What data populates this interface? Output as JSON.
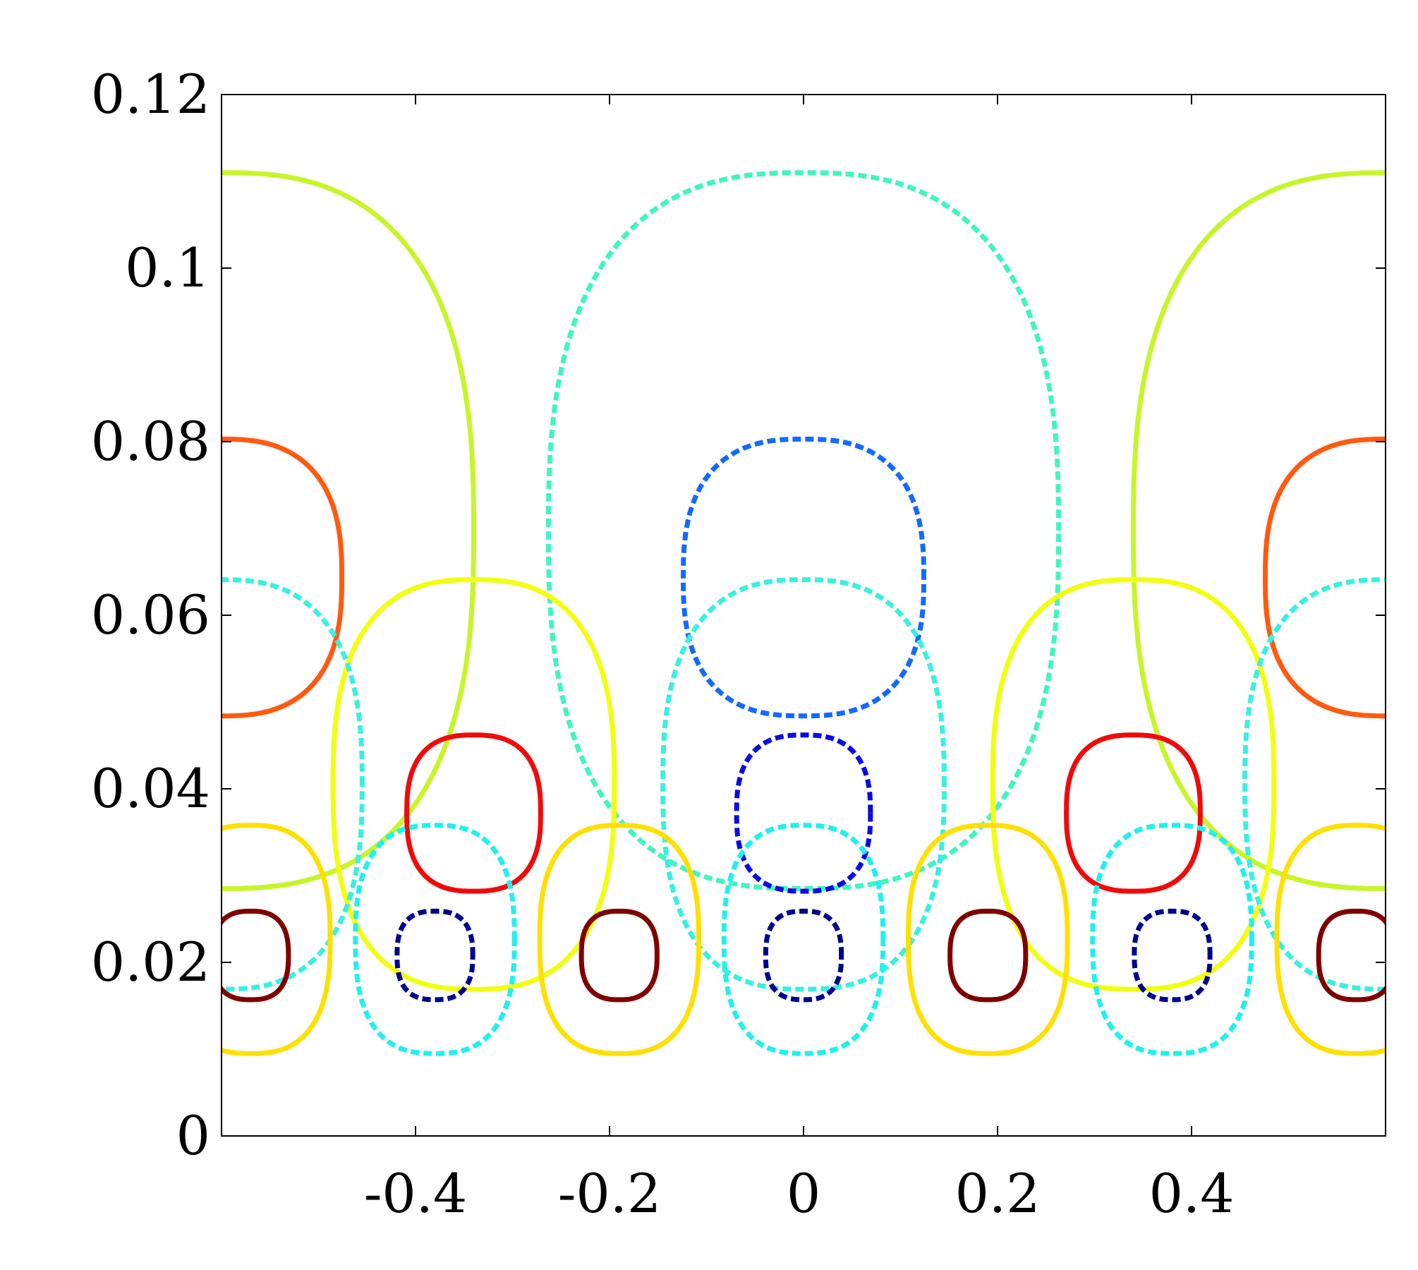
{
  "chart_data": {
    "type": "contour",
    "title": "",
    "xlabel": "",
    "ylabel": "",
    "xlim": [
      -0.6,
      0.6
    ],
    "ylim": [
      0,
      0.12
    ],
    "x_ticks": [
      -0.4,
      -0.2,
      0,
      0.2,
      0.4
    ],
    "x_tick_labels": [
      "-0.4",
      "-0.2",
      "0",
      "0.2",
      "0.4"
    ],
    "y_ticks": [
      0,
      0.02,
      0.04,
      0.06,
      0.08,
      0.1,
      0.12
    ],
    "y_tick_labels": [
      "0",
      "0.02",
      "0.04",
      "0.06",
      "0.08",
      "0.1",
      "0.12"
    ],
    "grid": false,
    "legend": "none",
    "contours": [
      {
        "color": "#c8f52a",
        "dashed": false,
        "x_centers": [
          -0.6,
          0.6
        ],
        "inner_x": -0.34,
        "ymin": 0.0285,
        "ymax": 0.111,
        "rx_bottom": 0.26,
        "rx_top": 0.26
      },
      {
        "color": "#40f5c0",
        "dashed": true,
        "x_centers": [
          0
        ],
        "ymin": 0.0285,
        "ymax": 0.111,
        "rx_bottom": 0.263,
        "rx_top": 0.263
      },
      {
        "color": "#ff5a10",
        "dashed": false,
        "x_centers": [
          -0.6,
          0.6
        ],
        "ymin": 0.0484,
        "ymax": 0.0803,
        "rx_bottom": 0.124,
        "rx_top": 0.124
      },
      {
        "color": "#1469ff",
        "dashed": true,
        "x_centers": [
          0
        ],
        "ymin": 0.0484,
        "ymax": 0.0803,
        "rx_bottom": 0.124,
        "rx_top": 0.124
      },
      {
        "color": "#f2ff10",
        "dashed": false,
        "x_centers": [
          -0.34,
          0.34
        ],
        "ymin": 0.0169,
        "ymax": 0.0641,
        "rx_bottom": 0.145,
        "rx_top": 0.145
      },
      {
        "color": "#3af0e0",
        "dashed": true,
        "x_centers": [
          -0.6,
          0,
          0.6
        ],
        "ymin": 0.0169,
        "ymax": 0.0641,
        "rx_bottom": 0.145,
        "rx_top": 0.145
      },
      {
        "color": "#f00a0a",
        "dashed": false,
        "x_centers": [
          -0.34,
          0.34
        ],
        "ymin": 0.0282,
        "ymax": 0.0462,
        "rx_bottom": 0.069,
        "rx_top": 0.069
      },
      {
        "color": "#0a0ae6",
        "dashed": true,
        "x_centers": [
          0
        ],
        "ymin": 0.0282,
        "ymax": 0.0462,
        "rx_bottom": 0.069,
        "rx_top": 0.069
      },
      {
        "color": "#ffe000",
        "dashed": false,
        "x_centers": [
          -0.57,
          -0.19,
          0.19,
          0.57
        ],
        "ymin": 0.0095,
        "ymax": 0.0358,
        "rx_bottom": 0.082,
        "rx_top": 0.082
      },
      {
        "color": "#20f0f0",
        "dashed": true,
        "x_centers": [
          -0.38,
          0,
          0.38
        ],
        "ymin": 0.0095,
        "ymax": 0.0358,
        "rx_bottom": 0.082,
        "rx_top": 0.082
      },
      {
        "color": "#800000",
        "dashed": false,
        "x_centers": [
          -0.57,
          -0.19,
          0.19,
          0.57
        ],
        "ymin": 0.0157,
        "ymax": 0.0259,
        "rx_bottom": 0.039,
        "rx_top": 0.039
      },
      {
        "color": "#00008c",
        "dashed": true,
        "x_centers": [
          -0.38,
          0,
          0.38
        ],
        "ymin": 0.0157,
        "ymax": 0.0259,
        "rx_bottom": 0.039,
        "rx_top": 0.039
      }
    ]
  }
}
